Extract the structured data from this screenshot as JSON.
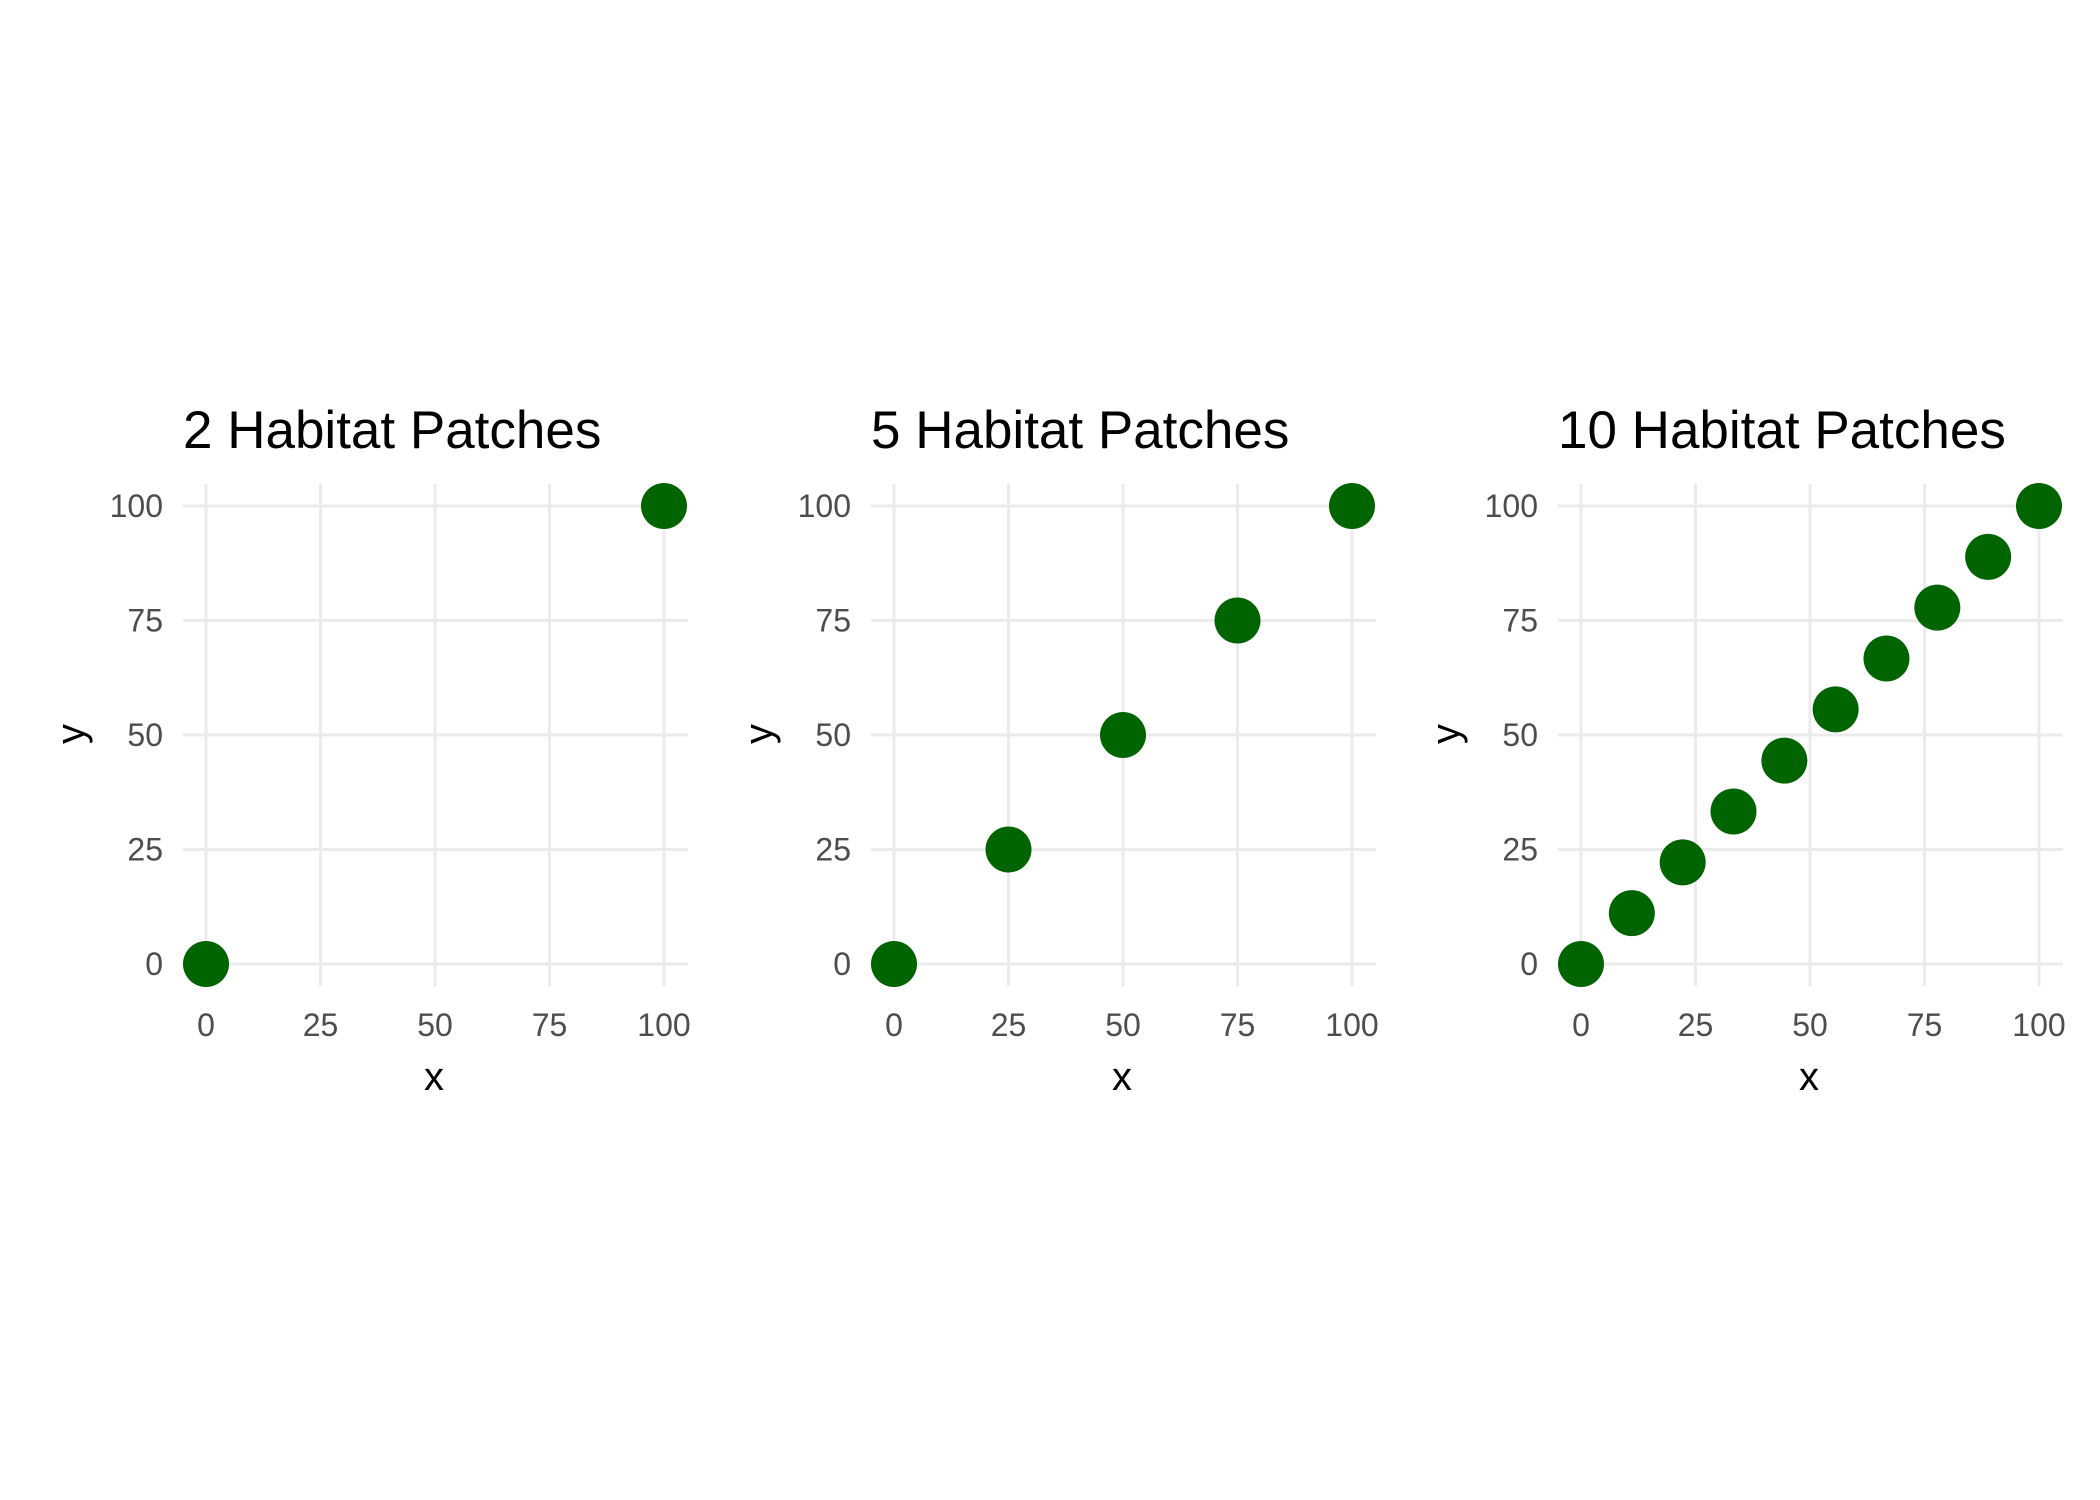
{
  "colors": {
    "point": "#006400",
    "grid": "#ebebeb",
    "tick_text": "#4d4d4d",
    "title_text": "#000000"
  },
  "chart_data": [
    {
      "type": "scatter",
      "title": "2 Habitat Patches",
      "xlabel": "x",
      "ylabel": "y",
      "xlim": [
        0,
        100
      ],
      "ylim": [
        0,
        100
      ],
      "x_ticks": [
        "0",
        "25",
        "50",
        "75",
        "100"
      ],
      "y_ticks": [
        "0",
        "25",
        "50",
        "75",
        "100"
      ],
      "grid": true,
      "points": [
        {
          "x": 0,
          "y": 0
        },
        {
          "x": 100,
          "y": 100
        }
      ]
    },
    {
      "type": "scatter",
      "title": "5 Habitat Patches",
      "xlabel": "x",
      "ylabel": "y",
      "xlim": [
        0,
        100
      ],
      "ylim": [
        0,
        100
      ],
      "x_ticks": [
        "0",
        "25",
        "50",
        "75",
        "100"
      ],
      "y_ticks": [
        "0",
        "25",
        "50",
        "75",
        "100"
      ],
      "grid": true,
      "points": [
        {
          "x": 0,
          "y": 0
        },
        {
          "x": 25,
          "y": 25
        },
        {
          "x": 50,
          "y": 50
        },
        {
          "x": 75,
          "y": 75
        },
        {
          "x": 100,
          "y": 100
        }
      ]
    },
    {
      "type": "scatter",
      "title": "10 Habitat Patches",
      "xlabel": "x",
      "ylabel": "y",
      "xlim": [
        0,
        100
      ],
      "ylim": [
        0,
        100
      ],
      "x_ticks": [
        "0",
        "25",
        "50",
        "75",
        "100"
      ],
      "y_ticks": [
        "0",
        "25",
        "50",
        "75",
        "100"
      ],
      "grid": true,
      "points": [
        {
          "x": 0,
          "y": 0
        },
        {
          "x": 11.1,
          "y": 11.1
        },
        {
          "x": 22.2,
          "y": 22.2
        },
        {
          "x": 33.3,
          "y": 33.3
        },
        {
          "x": 44.4,
          "y": 44.4
        },
        {
          "x": 55.6,
          "y": 55.6
        },
        {
          "x": 66.7,
          "y": 66.7
        },
        {
          "x": 77.8,
          "y": 77.8
        },
        {
          "x": 88.9,
          "y": 88.9
        },
        {
          "x": 100,
          "y": 100
        }
      ]
    }
  ]
}
